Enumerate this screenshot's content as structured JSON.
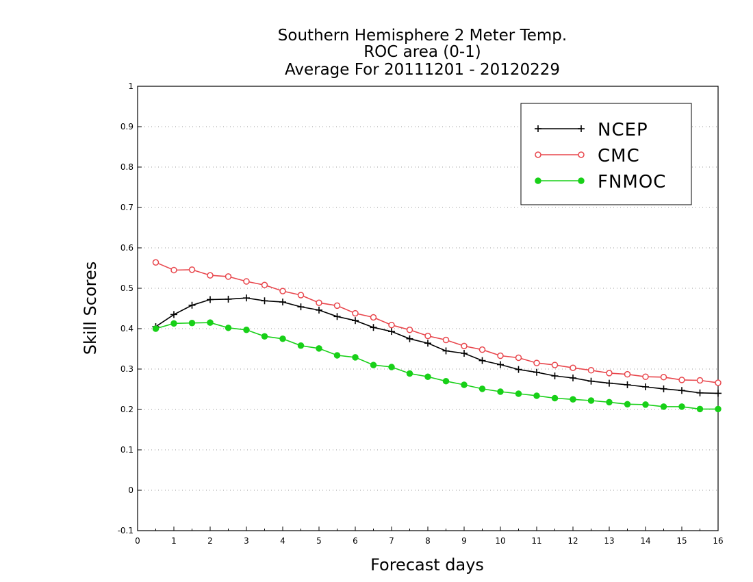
{
  "chart_data": {
    "type": "line",
    "title_lines": [
      "Southern Hemisphere 2 Meter Temp.",
      "ROC area (0-1)",
      "Average For 20111201 - 20120229"
    ],
    "xlabel": "Forecast days",
    "ylabel": "Skill Scores",
    "xlim": [
      0,
      16
    ],
    "ylim": [
      -0.1,
      1
    ],
    "x_ticks": [
      0,
      1,
      2,
      3,
      4,
      5,
      6,
      7,
      8,
      9,
      10,
      11,
      12,
      13,
      14,
      15,
      16
    ],
    "y_ticks": [
      -0.1,
      0,
      0.1,
      0.2,
      0.3,
      0.4,
      0.5,
      0.6,
      0.7,
      0.8,
      0.9,
      1
    ],
    "y_tick_labels": [
      "-0.1",
      "0",
      "0.1",
      "0.2",
      "0.3",
      "0.4",
      "0.5",
      "0.6",
      "0.7",
      "0.8",
      "0.9",
      "1"
    ],
    "grid": "horizontal dotted",
    "legend_position": "top-right",
    "x": [
      0.5,
      1,
      1.5,
      2,
      2.5,
      3,
      3.5,
      4,
      4.5,
      5,
      5.5,
      6,
      6.5,
      7,
      7.5,
      8,
      8.5,
      9,
      9.5,
      10,
      10.5,
      11,
      11.5,
      12,
      12.5,
      13,
      13.5,
      14,
      14.5,
      15,
      15.5,
      16
    ],
    "series": [
      {
        "name": "NCEP",
        "color": "#000000",
        "marker": "plus",
        "values": [
          0.405,
          0.435,
          0.458,
          0.472,
          0.473,
          0.476,
          0.469,
          0.466,
          0.454,
          0.446,
          0.43,
          0.42,
          0.403,
          0.393,
          0.375,
          0.364,
          0.345,
          0.339,
          0.321,
          0.311,
          0.299,
          0.292,
          0.283,
          0.278,
          0.27,
          0.265,
          0.261,
          0.256,
          0.251,
          0.247,
          0.241,
          0.24
        ]
      },
      {
        "name": "CMC",
        "color": "#e8464c",
        "marker": "open-circle",
        "values": [
          0.564,
          0.545,
          0.546,
          0.532,
          0.529,
          0.517,
          0.508,
          0.493,
          0.483,
          0.464,
          0.457,
          0.438,
          0.428,
          0.409,
          0.397,
          0.382,
          0.372,
          0.357,
          0.348,
          0.333,
          0.328,
          0.315,
          0.31,
          0.303,
          0.297,
          0.29,
          0.287,
          0.281,
          0.28,
          0.273,
          0.272,
          0.266
        ]
      },
      {
        "name": "FNMOC",
        "color": "#18d018",
        "marker": "filled-circle",
        "values": [
          0.4,
          0.413,
          0.414,
          0.415,
          0.402,
          0.397,
          0.381,
          0.375,
          0.358,
          0.351,
          0.334,
          0.329,
          0.31,
          0.305,
          0.289,
          0.281,
          0.27,
          0.261,
          0.251,
          0.244,
          0.239,
          0.234,
          0.228,
          0.225,
          0.222,
          0.218,
          0.213,
          0.212,
          0.207,
          0.207,
          0.201,
          0.201
        ]
      }
    ]
  }
}
